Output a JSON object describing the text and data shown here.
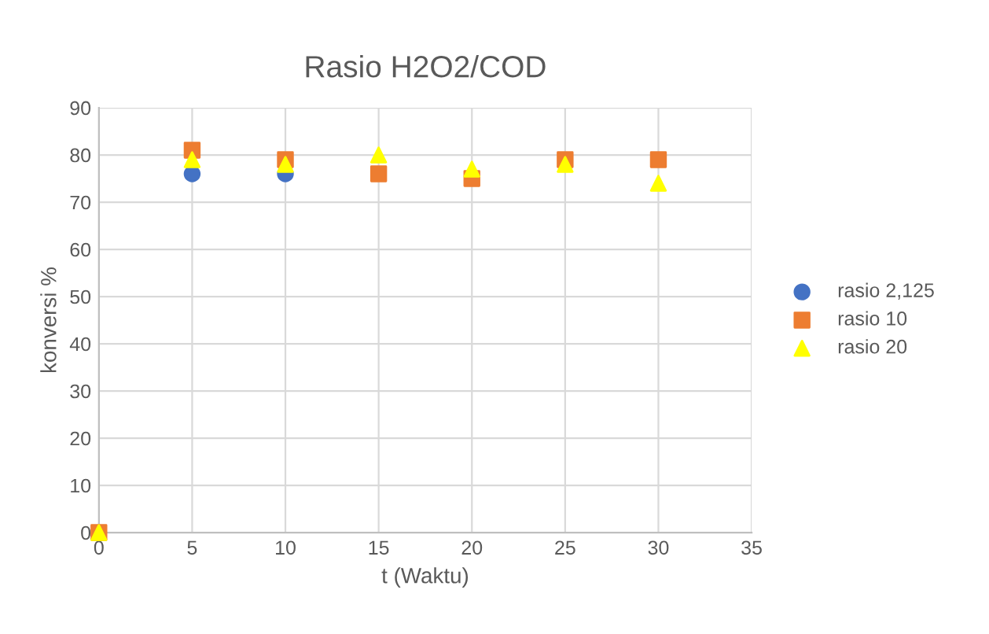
{
  "chart_data": {
    "type": "scatter",
    "title": "Rasio H2O2/COD",
    "xlabel": "t (Waktu)",
    "ylabel": "konversi %",
    "x": [
      0,
      5,
      10,
      15,
      20,
      25,
      30
    ],
    "series": [
      {
        "name": "rasio 2,125",
        "color": "#4472c4",
        "marker": "circle",
        "values": [
          null,
          76,
          76,
          null,
          null,
          null,
          null
        ]
      },
      {
        "name": "rasio 10",
        "color": "#ed7d31",
        "marker": "square",
        "values": [
          0,
          81,
          79,
          76,
          75,
          79,
          79
        ]
      },
      {
        "name": "rasio 20",
        "color": "#ffff00",
        "marker": "triangle",
        "values": [
          0,
          79,
          78,
          80,
          77,
          78,
          74
        ]
      }
    ],
    "xlim": [
      0,
      35
    ],
    "xticks": [
      0,
      5,
      10,
      15,
      20,
      25,
      30,
      35
    ],
    "ylim": [
      0,
      90
    ],
    "yticks": [
      0,
      10,
      20,
      30,
      40,
      50,
      60,
      70,
      80,
      90
    ],
    "grid": true,
    "legend": "right"
  }
}
